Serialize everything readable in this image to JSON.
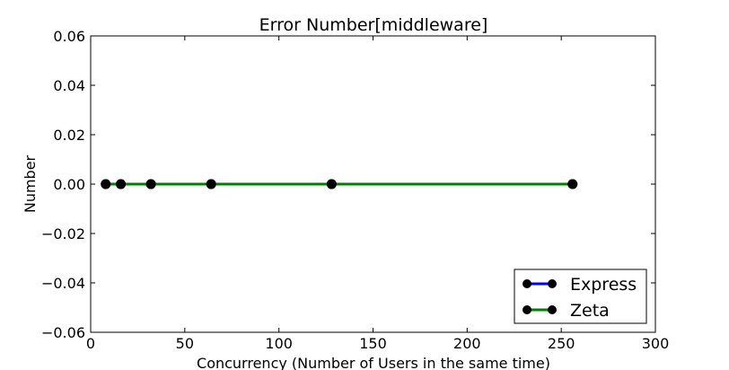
{
  "chart_data": {
    "type": "line",
    "title": "Error Number[middleware]",
    "xlabel": "Concurrency (Number of Users in the same time)",
    "ylabel": "Number",
    "xlim": [
      0,
      300
    ],
    "ylim": [
      -0.06,
      0.06
    ],
    "xticks": [
      0,
      50,
      100,
      150,
      200,
      250,
      300
    ],
    "xtick_labels": [
      "0",
      "50",
      "100",
      "150",
      "200",
      "250",
      "300"
    ],
    "yticks": [
      -0.06,
      -0.04,
      -0.02,
      0.0,
      0.02,
      0.04,
      0.06
    ],
    "ytick_labels": [
      "−0.06",
      "−0.04",
      "−0.02",
      "0.00",
      "0.02",
      "0.04",
      "0.06"
    ],
    "grid": false,
    "legend_position": "bottom-right",
    "x": [
      8,
      16,
      32,
      64,
      128,
      256
    ],
    "series": [
      {
        "name": "Express",
        "color": "#0000ff",
        "marker_color": "#000000",
        "values": [
          0,
          0,
          0,
          0,
          0,
          0
        ]
      },
      {
        "name": "Zeta",
        "color": "#008000",
        "marker_color": "#000000",
        "values": [
          0,
          0,
          0,
          0,
          0,
          0
        ]
      }
    ]
  }
}
